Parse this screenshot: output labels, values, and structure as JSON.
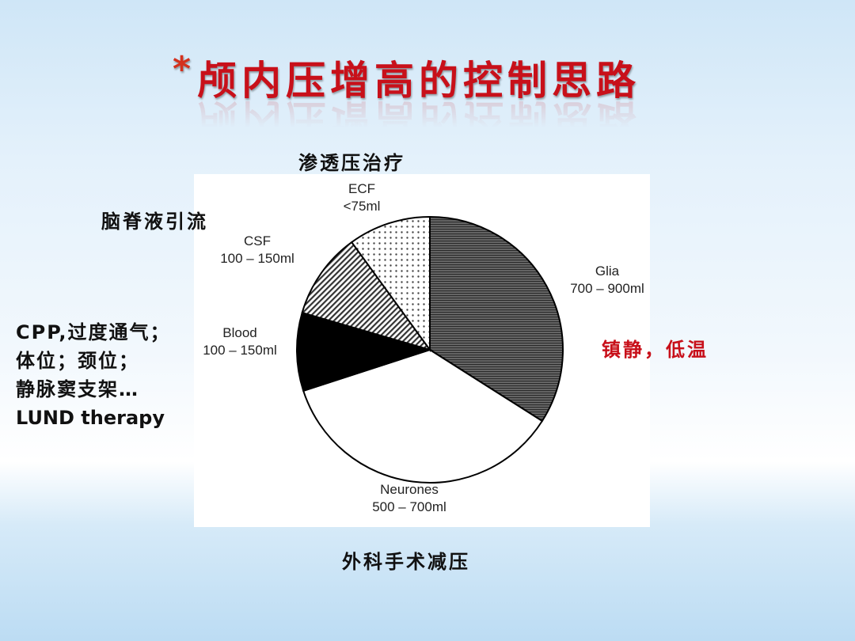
{
  "slide": {
    "title_star": "*",
    "title": "颅内压增高的控制思路",
    "annotations": {
      "top": "渗透压治疗",
      "upper_left": "脑脊液引流",
      "left_lines": [
        "CPP,过度通气；",
        "体位；颈位；",
        "静脉窦支架…",
        "LUND therapy"
      ],
      "right": "镇静，低温",
      "bottom": "外科手术减压"
    },
    "colors": {
      "title": "#c8101a",
      "right_annotation": "#c8101a"
    }
  },
  "chart_data": {
    "type": "pie",
    "start": "top",
    "direction": "clockwise",
    "slices": [
      {
        "name": "Glia",
        "range": "700 – 900ml",
        "share_pct": 34,
        "fill": "horizontal-lines-dark"
      },
      {
        "name": "Neurones",
        "range": "500 – 700ml",
        "share_pct": 36,
        "fill": "white"
      },
      {
        "name": "Blood",
        "range": "100 – 150ml",
        "share_pct": 9.5,
        "fill": "black"
      },
      {
        "name": "CSF",
        "range": "100 – 150ml",
        "share_pct": 10.5,
        "fill": "diagonal-hatch"
      },
      {
        "name": "ECF",
        "range": "<75ml",
        "share_pct": 10,
        "fill": "dots"
      }
    ]
  }
}
